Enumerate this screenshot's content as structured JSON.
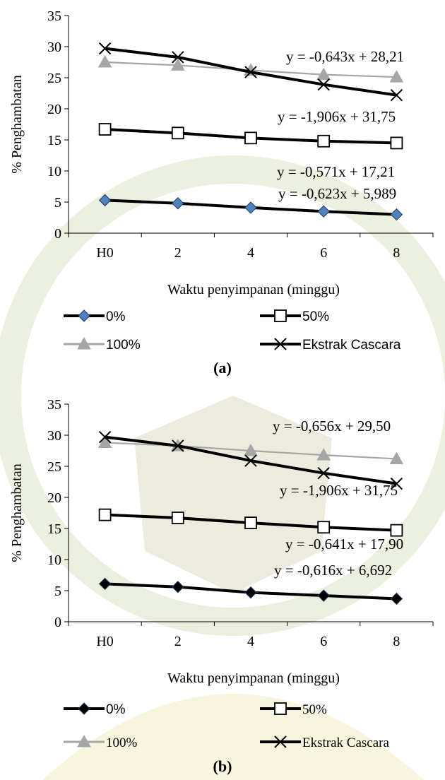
{
  "panels": [
    {
      "caption": "(a)",
      "chart_data": {
        "type": "line",
        "categories": [
          "H0",
          "2",
          "4",
          "6",
          "8"
        ],
        "xlabel": "Waktu penyimpanan (minggu)",
        "ylabel": "% Penghambatan",
        "ylim": [
          0,
          35
        ],
        "yticks": [
          "0",
          "5",
          "10",
          "15",
          "20",
          "25",
          "30",
          "35"
        ],
        "grid": false,
        "legend_position": "bottom",
        "series": [
          {
            "name": "0%",
            "marker": "diamond",
            "color": "#000000",
            "marker_color": "#4f81bd",
            "values": [
              5.3,
              4.8,
              4.1,
              3.5,
              3.0
            ]
          },
          {
            "name": "50%",
            "marker": "square",
            "color": "#000000",
            "marker_color": "#ffffff",
            "values": [
              16.7,
              16.1,
              15.3,
              14.8,
              14.5
            ]
          },
          {
            "name": "100%",
            "marker": "triangle",
            "color": "#a6a6a6",
            "marker_color": "#a6a6a6",
            "values": [
              27.5,
              27.0,
              26.2,
              25.5,
              25.1
            ]
          },
          {
            "name": "Ekstrak Cascara",
            "marker": "x",
            "color": "#000000",
            "marker_color": "#000000",
            "values": [
              29.7,
              28.3,
              25.9,
              23.9,
              22.2
            ]
          }
        ],
        "annotations": [
          "y = -0,643x + 28,21",
          "y = -1,906x + 31,75",
          "y = -0,571x + 17,21",
          "y = -0,623x + 5,989"
        ]
      }
    },
    {
      "caption": "(b)",
      "chart_data": {
        "type": "line",
        "categories": [
          "H0",
          "2",
          "4",
          "6",
          "8"
        ],
        "xlabel": "Waktu penyimpanan (minggu)",
        "ylabel": "% Penghambatan",
        "ylim": [
          0,
          35
        ],
        "yticks": [
          "0",
          "5",
          "10",
          "15",
          "20",
          "25",
          "30",
          "35"
        ],
        "grid": false,
        "legend_position": "bottom",
        "series": [
          {
            "name": "0%",
            "marker": "diamond",
            "color": "#000000",
            "marker_color": "#000000",
            "values": [
              6.1,
              5.6,
              4.7,
              4.2,
              3.7
            ]
          },
          {
            "name": "50%",
            "marker": "square",
            "color": "#000000",
            "marker_color": "#ffffff",
            "values": [
              17.2,
              16.7,
              15.9,
              15.2,
              14.7
            ]
          },
          {
            "name": "100%",
            "marker": "triangle",
            "color": "#a6a6a6",
            "marker_color": "#a6a6a6",
            "values": [
              28.8,
              28.3,
              27.5,
              26.8,
              26.2
            ]
          },
          {
            "name": "Ekstrak Cascara",
            "marker": "x",
            "color": "#000000",
            "marker_color": "#000000",
            "values": [
              29.7,
              28.3,
              25.9,
              23.9,
              22.2
            ]
          }
        ],
        "annotations": [
          "y = -0,656x + 29,50",
          "y = -1,906x + 31,75",
          "y = -0,641x + 17,90",
          "y = -0,616x + 6,692"
        ]
      }
    }
  ]
}
